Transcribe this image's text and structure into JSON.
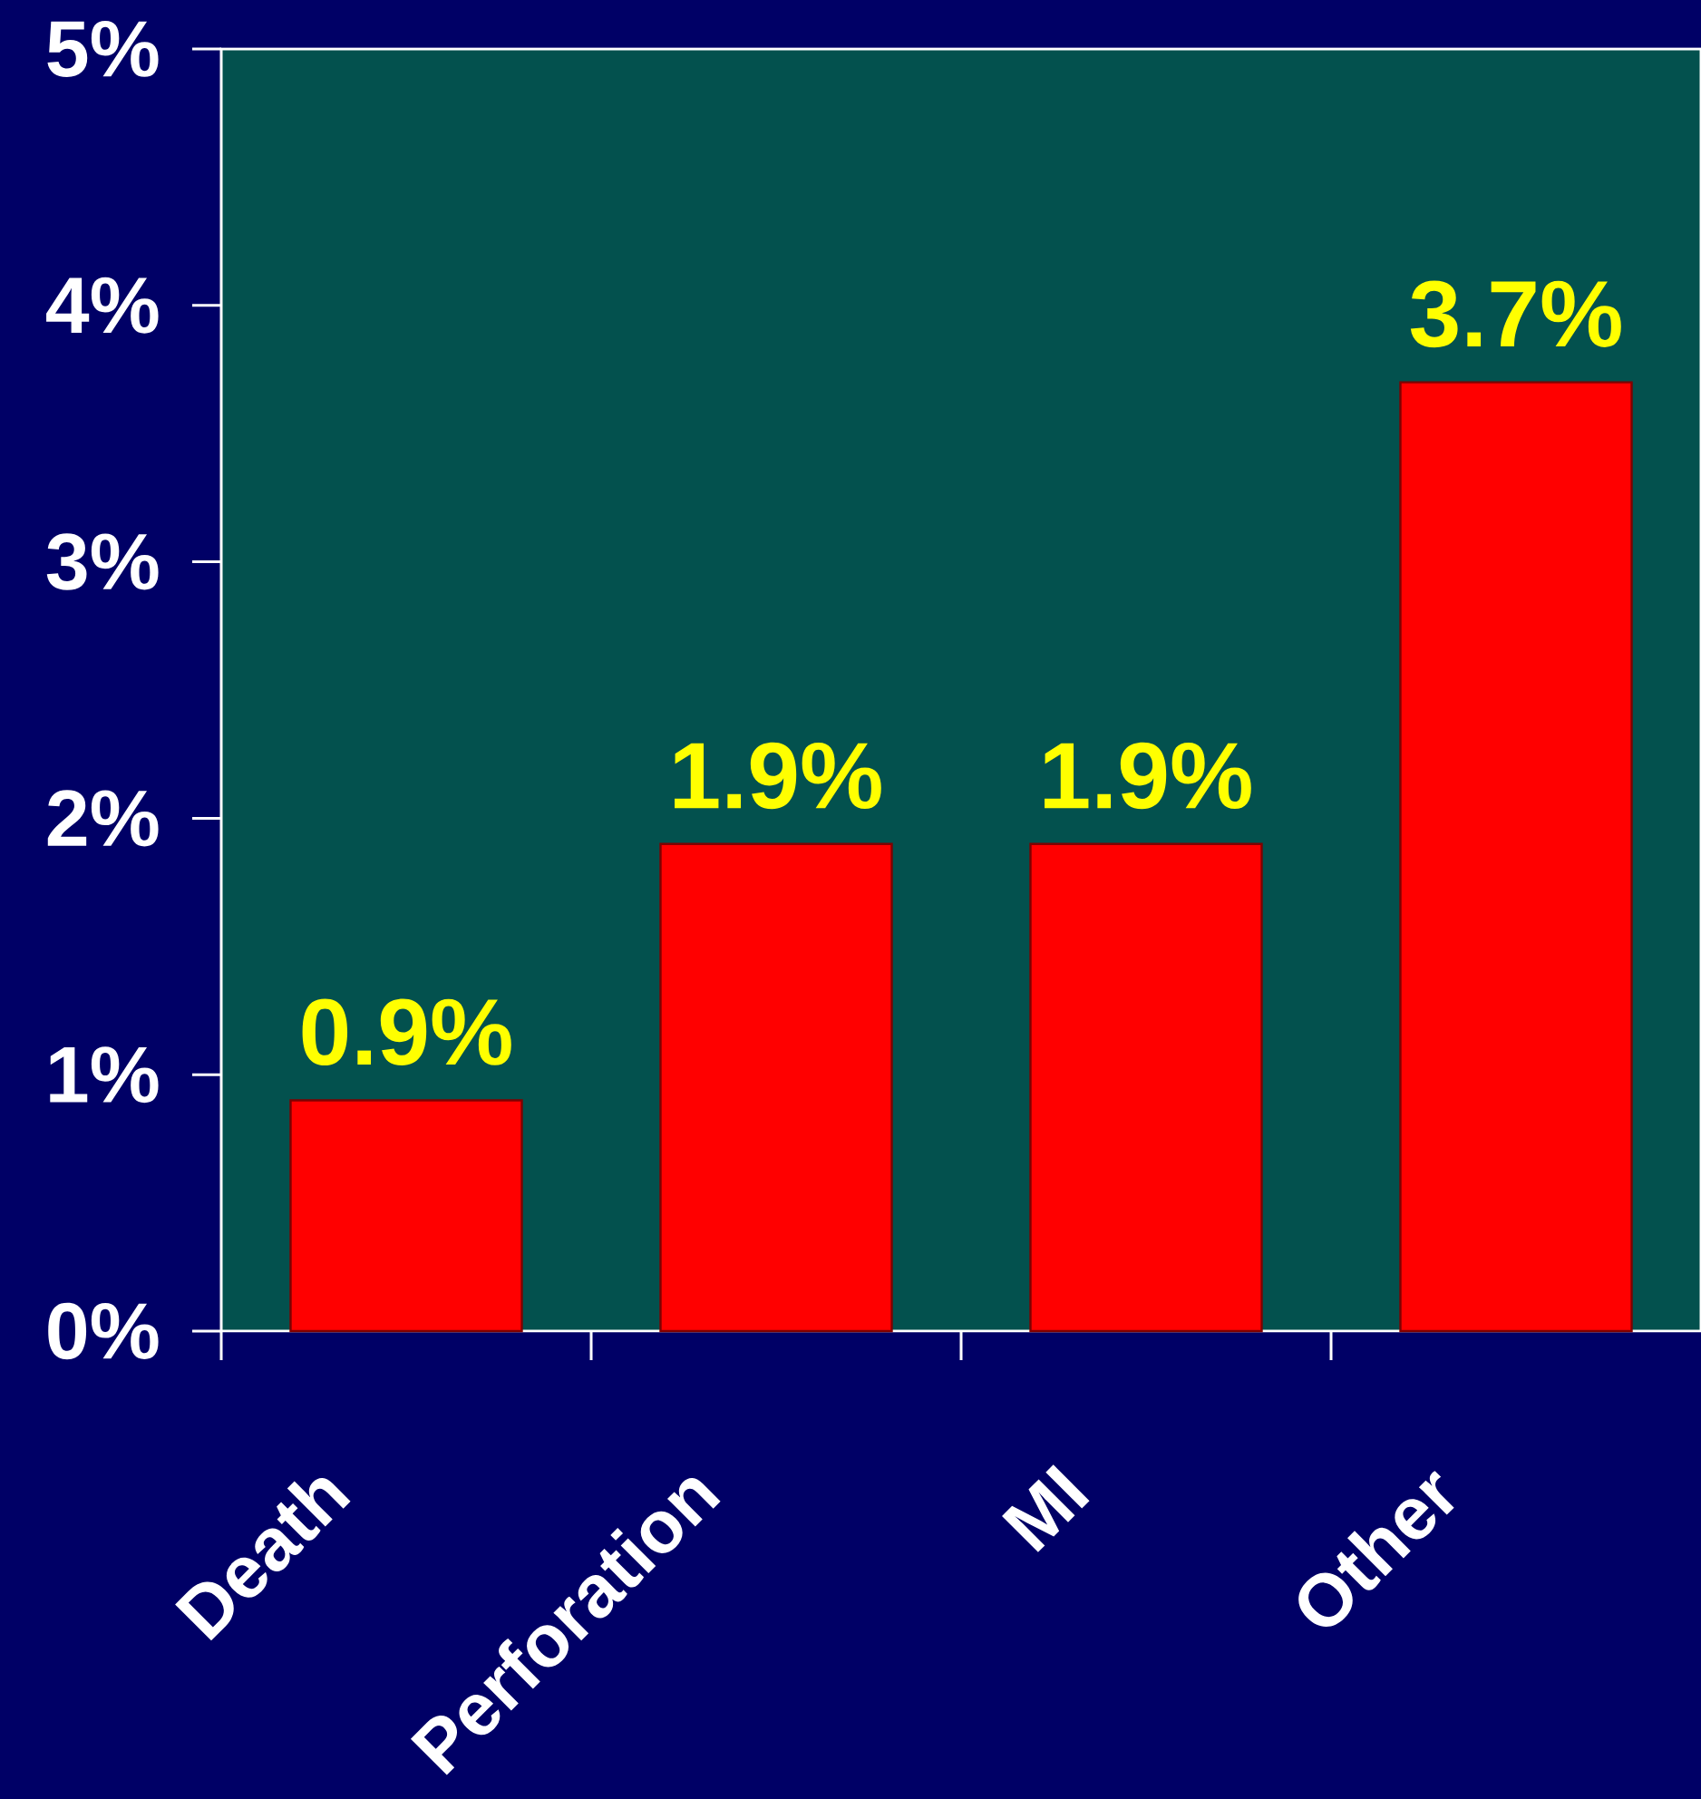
{
  "chart_data": {
    "type": "bar",
    "categories": [
      "Death",
      "Perforation",
      "MI",
      "Other"
    ],
    "values": [
      0.9,
      1.9,
      1.9,
      3.7
    ],
    "color": "#ff0000",
    "value_labels": [
      "0.9%",
      "1.9%",
      "1.9%",
      "3.7%"
    ],
    "ylim": [
      0,
      5
    ],
    "yticks": [
      {
        "value": 0,
        "label": "0%"
      },
      {
        "value": 1,
        "label": "1%"
      },
      {
        "value": 2,
        "label": "2%"
      },
      {
        "value": 3,
        "label": "3%"
      },
      {
        "value": 4,
        "label": "4%"
      },
      {
        "value": 5,
        "label": "5%"
      }
    ]
  }
}
